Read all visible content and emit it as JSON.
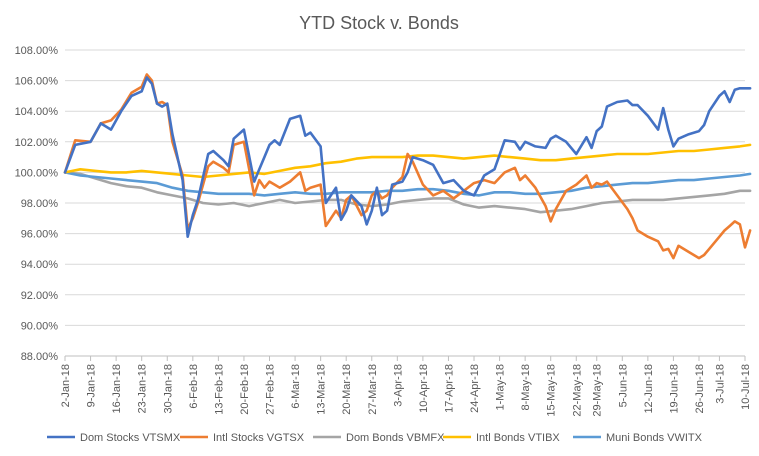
{
  "chart_data": {
    "type": "line",
    "title": "YTD Stock v. Bonds",
    "xlabel": "",
    "ylabel": "",
    "ylim": [
      0.88,
      1.08
    ],
    "yticks": [
      "88.00%",
      "90.00%",
      "92.00%",
      "94.00%",
      "96.00%",
      "98.00%",
      "100.00%",
      "102.00%",
      "104.00%",
      "106.00%",
      "108.00%"
    ],
    "ytick_values": [
      0.88,
      0.9,
      0.92,
      0.94,
      0.96,
      0.98,
      1.0,
      1.02,
      1.04,
      1.06,
      1.08
    ],
    "grid": true,
    "legend": "bottom",
    "x_index_range": [
      0,
      133
    ],
    "xticks": [
      "2-Jan-18",
      "9-Jan-18",
      "16-Jan-18",
      "23-Jan-18",
      "30-Jan-18",
      "6-Feb-18",
      "13-Feb-18",
      "20-Feb-18",
      "27-Feb-18",
      "6-Mar-18",
      "13-Mar-18",
      "20-Mar-18",
      "27-Mar-18",
      "3-Apr-18",
      "10-Apr-18",
      "17-Apr-18",
      "24-Apr-18",
      "1-May-18",
      "8-May-18",
      "15-May-18",
      "22-May-18",
      "29-May-18",
      "5-Jun-18",
      "12-Jun-18",
      "19-Jun-18",
      "26-Jun-18",
      "3-Jul-18",
      "10-Jul-18"
    ],
    "xtick_indices": [
      0,
      5,
      10,
      15,
      20,
      25,
      30,
      35,
      40,
      45,
      50,
      55,
      60,
      65,
      70,
      75,
      80,
      85,
      90,
      95,
      100,
      104,
      109,
      114,
      119,
      124,
      128,
      133
    ],
    "series": [
      {
        "name": "Dom Stocks VTSMX",
        "color": "#4472c4",
        "x": [
          0,
          2,
          5,
          7,
          9,
          11,
          13,
          15,
          16,
          17,
          18,
          19,
          20,
          21,
          23,
          24,
          25,
          26,
          28,
          29,
          31,
          32,
          33,
          35,
          37,
          38,
          39,
          40,
          41,
          42,
          44,
          46,
          47,
          48,
          50,
          51,
          53,
          54,
          55,
          56,
          58,
          59,
          60,
          61,
          62,
          63,
          64,
          66,
          67,
          68,
          70,
          72,
          74,
          76,
          78,
          80,
          82,
          84,
          86,
          88,
          89,
          90,
          92,
          94,
          95,
          96,
          98,
          100,
          102,
          103,
          104,
          105,
          106,
          108,
          110,
          111,
          112,
          114,
          116,
          117,
          118,
          119,
          120,
          122,
          124,
          125,
          126,
          128,
          129,
          130,
          131,
          132,
          133,
          134
        ],
        "y": [
          1.0,
          1.018,
          1.02,
          1.032,
          1.028,
          1.04,
          1.05,
          1.053,
          1.062,
          1.058,
          1.045,
          1.043,
          1.045,
          1.025,
          0.995,
          0.958,
          0.972,
          0.982,
          1.012,
          1.014,
          1.008,
          1.004,
          1.022,
          1.028,
          0.994,
          1.002,
          1.01,
          1.018,
          1.021,
          1.018,
          1.035,
          1.037,
          1.024,
          1.026,
          1.017,
          0.98,
          0.99,
          0.969,
          0.975,
          0.985,
          0.978,
          0.966,
          0.975,
          0.99,
          0.972,
          0.975,
          0.992,
          0.994,
          1.0,
          1.01,
          1.008,
          1.005,
          0.993,
          0.995,
          0.988,
          0.985,
          0.998,
          1.002,
          1.021,
          1.02,
          1.015,
          1.02,
          1.017,
          1.016,
          1.022,
          1.024,
          1.02,
          1.012,
          1.023,
          1.016,
          1.027,
          1.03,
          1.043,
          1.046,
          1.047,
          1.044,
          1.044,
          1.037,
          1.028,
          1.042,
          1.028,
          1.017,
          1.022,
          1.025,
          1.027,
          1.031,
          1.04,
          1.05,
          1.053,
          1.046,
          1.054,
          1.055,
          1.055,
          1.055
        ]
      },
      {
        "name": "Intl Stocks VGTSX",
        "color": "#ed7d31",
        "x": [
          0,
          2,
          5,
          7,
          9,
          11,
          13,
          15,
          16,
          17,
          18,
          19,
          20,
          21,
          23,
          24,
          25,
          26,
          28,
          29,
          31,
          32,
          33,
          35,
          37,
          38,
          39,
          40,
          41,
          42,
          44,
          46,
          47,
          48,
          50,
          51,
          53,
          54,
          55,
          56,
          58,
          59,
          60,
          61,
          62,
          63,
          64,
          66,
          67,
          68,
          70,
          72,
          74,
          76,
          78,
          80,
          82,
          84,
          86,
          88,
          89,
          90,
          92,
          94,
          95,
          96,
          98,
          100,
          102,
          103,
          104,
          105,
          106,
          108,
          110,
          111,
          112,
          114,
          116,
          117,
          118,
          119,
          120,
          122,
          124,
          125,
          126,
          128,
          129,
          130,
          131,
          132,
          133,
          134
        ],
        "y": [
          1.0,
          1.021,
          1.02,
          1.032,
          1.034,
          1.041,
          1.052,
          1.056,
          1.064,
          1.06,
          1.045,
          1.046,
          1.044,
          1.02,
          0.998,
          0.963,
          0.97,
          0.98,
          1.004,
          1.007,
          1.003,
          1.0,
          1.018,
          1.02,
          0.985,
          0.995,
          0.99,
          0.994,
          0.992,
          0.99,
          0.994,
          1.0,
          0.988,
          0.99,
          0.992,
          0.965,
          0.975,
          0.97,
          0.982,
          0.985,
          0.972,
          0.975,
          0.985,
          0.988,
          0.983,
          0.985,
          0.99,
          0.997,
          1.012,
          1.007,
          0.992,
          0.985,
          0.988,
          0.983,
          0.988,
          0.993,
          0.995,
          0.993,
          1.0,
          1.003,
          0.995,
          0.998,
          0.99,
          0.978,
          0.968,
          0.976,
          0.988,
          0.992,
          0.998,
          0.99,
          0.993,
          0.992,
          0.994,
          0.985,
          0.976,
          0.97,
          0.962,
          0.958,
          0.955,
          0.949,
          0.95,
          0.944,
          0.952,
          0.948,
          0.944,
          0.946,
          0.95,
          0.958,
          0.962,
          0.965,
          0.968,
          0.966,
          0.951,
          0.962
        ]
      },
      {
        "name": "Dom Bonds VBMFX",
        "color": "#a5a5a5",
        "x": [
          0,
          3,
          6,
          9,
          12,
          15,
          18,
          21,
          24,
          27,
          30,
          33,
          36,
          39,
          42,
          45,
          48,
          51,
          54,
          57,
          60,
          63,
          66,
          69,
          72,
          75,
          78,
          81,
          84,
          87,
          90,
          93,
          96,
          99,
          102,
          105,
          108,
          111,
          114,
          117,
          120,
          123,
          126,
          129,
          132,
          134
        ],
        "y": [
          1.0,
          0.999,
          0.996,
          0.993,
          0.991,
          0.99,
          0.987,
          0.985,
          0.983,
          0.98,
          0.979,
          0.98,
          0.978,
          0.98,
          0.982,
          0.98,
          0.981,
          0.982,
          0.982,
          0.979,
          0.978,
          0.979,
          0.981,
          0.982,
          0.983,
          0.983,
          0.979,
          0.977,
          0.978,
          0.977,
          0.976,
          0.974,
          0.975,
          0.976,
          0.978,
          0.98,
          0.981,
          0.982,
          0.982,
          0.982,
          0.983,
          0.984,
          0.985,
          0.986,
          0.988,
          0.988
        ]
      },
      {
        "name": "Intl Bonds VTIBX",
        "color": "#ffc000",
        "x": [
          0,
          3,
          6,
          9,
          12,
          15,
          18,
          21,
          24,
          27,
          30,
          33,
          36,
          39,
          42,
          45,
          48,
          51,
          54,
          57,
          60,
          63,
          66,
          69,
          72,
          75,
          78,
          81,
          84,
          87,
          90,
          93,
          96,
          99,
          102,
          105,
          108,
          111,
          114,
          117,
          120,
          123,
          126,
          129,
          132,
          134
        ],
        "y": [
          1.0,
          1.002,
          1.001,
          1.0,
          1.0,
          1.001,
          1.0,
          0.999,
          0.998,
          0.997,
          0.998,
          0.999,
          1.0,
          0.999,
          1.001,
          1.003,
          1.004,
          1.006,
          1.007,
          1.009,
          1.01,
          1.01,
          1.01,
          1.011,
          1.011,
          1.01,
          1.009,
          1.01,
          1.011,
          1.01,
          1.009,
          1.008,
          1.008,
          1.009,
          1.01,
          1.011,
          1.012,
          1.012,
          1.012,
          1.013,
          1.014,
          1.014,
          1.015,
          1.016,
          1.017,
          1.018
        ]
      },
      {
        "name": "Muni Bonds VWITX",
        "color": "#5b9bd5",
        "x": [
          0,
          3,
          6,
          9,
          12,
          15,
          18,
          21,
          24,
          27,
          30,
          33,
          36,
          39,
          42,
          45,
          48,
          51,
          54,
          57,
          60,
          63,
          66,
          69,
          72,
          75,
          78,
          81,
          84,
          87,
          90,
          93,
          96,
          99,
          102,
          105,
          108,
          111,
          114,
          117,
          120,
          123,
          126,
          129,
          132,
          134
        ],
        "y": [
          1.0,
          0.998,
          0.997,
          0.996,
          0.995,
          0.994,
          0.993,
          0.99,
          0.988,
          0.987,
          0.986,
          0.986,
          0.986,
          0.985,
          0.986,
          0.987,
          0.986,
          0.986,
          0.987,
          0.987,
          0.987,
          0.988,
          0.988,
          0.989,
          0.989,
          0.988,
          0.986,
          0.985,
          0.987,
          0.987,
          0.986,
          0.986,
          0.987,
          0.988,
          0.99,
          0.991,
          0.992,
          0.993,
          0.993,
          0.994,
          0.995,
          0.995,
          0.996,
          0.997,
          0.998,
          0.999
        ]
      }
    ]
  }
}
